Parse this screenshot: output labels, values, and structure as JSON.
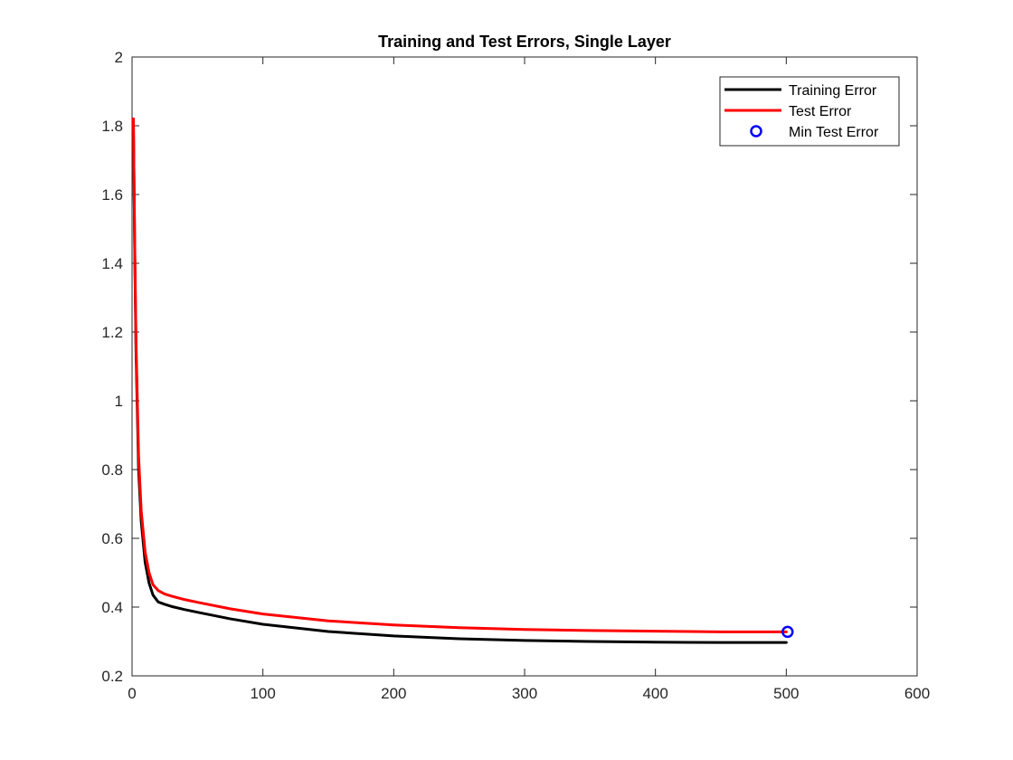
{
  "chart_data": {
    "type": "line",
    "title": "Training and Test Errors, Single Layer",
    "xlabel": "",
    "ylabel": "",
    "xlim": [
      0,
      600
    ],
    "ylim": [
      0.2,
      2
    ],
    "xticks": [
      0,
      100,
      200,
      300,
      400,
      500,
      600
    ],
    "yticks": [
      0.2,
      0.4,
      0.6,
      0.8,
      1,
      1.2,
      1.4,
      1.6,
      1.8,
      2
    ],
    "xtick_labels": [
      "0",
      "100",
      "200",
      "300",
      "400",
      "500",
      "600"
    ],
    "ytick_labels": [
      "0.2",
      "0.4",
      "0.6",
      "0.8",
      "1",
      "1.2",
      "1.4",
      "1.6",
      "1.8",
      "2"
    ],
    "grid": false,
    "legend_position": "top-right",
    "series": [
      {
        "name": "Training Error",
        "color": "#000000",
        "x": [
          1,
          2,
          3,
          5,
          7,
          10,
          13,
          16,
          20,
          25,
          30,
          40,
          50,
          75,
          100,
          150,
          200,
          250,
          300,
          350,
          400,
          450,
          500
        ],
        "y": [
          1.82,
          1.45,
          1.15,
          0.8,
          0.65,
          0.53,
          0.47,
          0.435,
          0.415,
          0.408,
          0.402,
          0.393,
          0.385,
          0.366,
          0.35,
          0.329,
          0.316,
          0.308,
          0.303,
          0.3,
          0.298,
          0.297,
          0.297
        ]
      },
      {
        "name": "Test Error",
        "color": "#ff0000",
        "x": [
          1,
          2,
          3,
          5,
          7,
          10,
          13,
          16,
          20,
          25,
          30,
          40,
          50,
          75,
          100,
          150,
          200,
          250,
          300,
          350,
          400,
          450,
          500
        ],
        "y": [
          1.82,
          1.47,
          1.18,
          0.84,
          0.68,
          0.56,
          0.5,
          0.465,
          0.448,
          0.438,
          0.432,
          0.422,
          0.414,
          0.395,
          0.38,
          0.36,
          0.348,
          0.34,
          0.335,
          0.332,
          0.33,
          0.328,
          0.328
        ]
      },
      {
        "name": "Min Test Error",
        "color": "#0000ff",
        "marker": "circle",
        "x": [
          501
        ],
        "y": [
          0.328
        ]
      }
    ]
  }
}
